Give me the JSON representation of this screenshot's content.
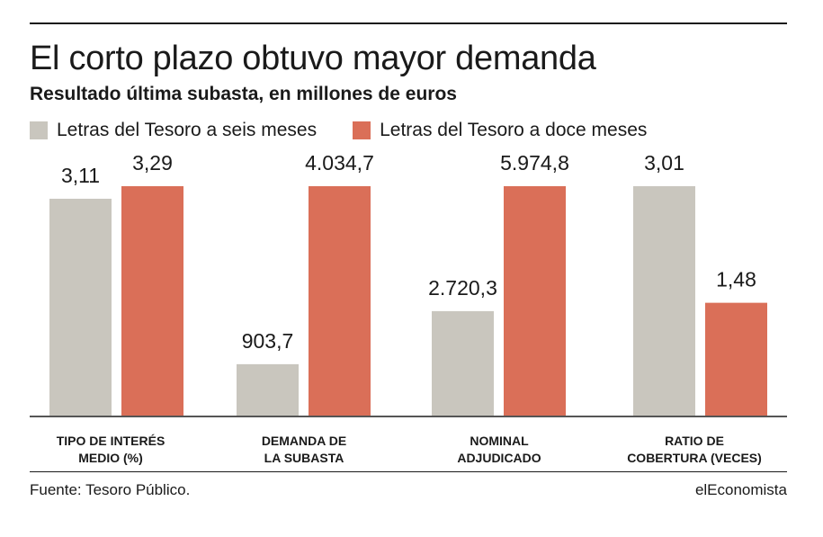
{
  "title": "El corto plazo obtuvo mayor demanda",
  "subtitle": "Resultado última subasta, en millones de euros",
  "source": "Fuente: Tesoro Público.",
  "brand": "elEconomista",
  "colors": {
    "six_months": "#c9c6be",
    "twelve_months": "#da6f58",
    "axis": "#555555"
  },
  "chart_data": {
    "type": "bar",
    "categories": [
      "TIPO DE INTERÉS MEDIO (%)",
      "DEMANDA DE LA SUBASTA",
      "NOMINAL ADJUDICADO",
      "RATIO DE COBERTURA (VECES)"
    ],
    "category_lines": [
      [
        "TIPO DE INTERÉS",
        "MEDIO (%)"
      ],
      [
        "DEMANDA DE",
        "LA SUBASTA"
      ],
      [
        "NOMINAL",
        "ADJUDICADO"
      ],
      [
        "RATIO DE",
        "COBERTURA (VECES)"
      ]
    ],
    "series": [
      {
        "name": "Letras del Tesoro a seis meses",
        "values": [
          3.11,
          903.7,
          2720.3,
          3.01
        ],
        "labels": [
          "3,11",
          "903,7",
          "2.720,3",
          "3,01"
        ]
      },
      {
        "name": "Letras del Tesoro a doce meses",
        "values": [
          3.29,
          4034.7,
          5974.8,
          1.48
        ],
        "labels": [
          "3,29",
          "4.034,7",
          "5.974,8",
          "1,48"
        ]
      }
    ],
    "independent_scales_per_category": true,
    "grid": false,
    "legend_position": "top-left"
  }
}
